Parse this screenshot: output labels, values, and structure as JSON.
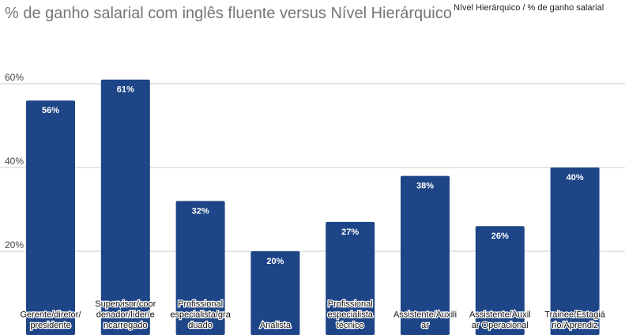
{
  "chart_data": {
    "type": "bar",
    "title": "% de ganho salarial com inglês fluente versus Nível Hierárquico",
    "legend": {
      "label": "Nível Hierárquico / % de ganho salarial",
      "position": "top-right"
    },
    "categories": [
      [
        "Gerente/diretor/",
        "presidente"
      ],
      [
        "Supervisor/coor",
        "denador/líder/e",
        "ncarregado"
      ],
      [
        "Profissional",
        "especialista/gra",
        "duado"
      ],
      [
        "Analista"
      ],
      [
        "Profissional",
        "especialista",
        "técnico"
      ],
      [
        "Assistente/Auxili",
        "ar"
      ],
      [
        "Assistente/Auxil",
        "ar Operacional"
      ],
      [
        "Trainee/Estagiá",
        "rio/Aprendiz"
      ]
    ],
    "values": [
      56,
      61,
      32,
      20,
      27,
      38,
      26,
      40
    ],
    "value_labels": [
      "56%",
      "61%",
      "32%",
      "20%",
      "27%",
      "38%",
      "26%",
      "40%"
    ],
    "yticks": [
      20,
      40,
      60
    ],
    "ytick_labels": [
      "20%",
      "40%",
      "60%"
    ],
    "grid": true,
    "bar_color": "#1d4587",
    "grid_color": "#cccccc"
  }
}
